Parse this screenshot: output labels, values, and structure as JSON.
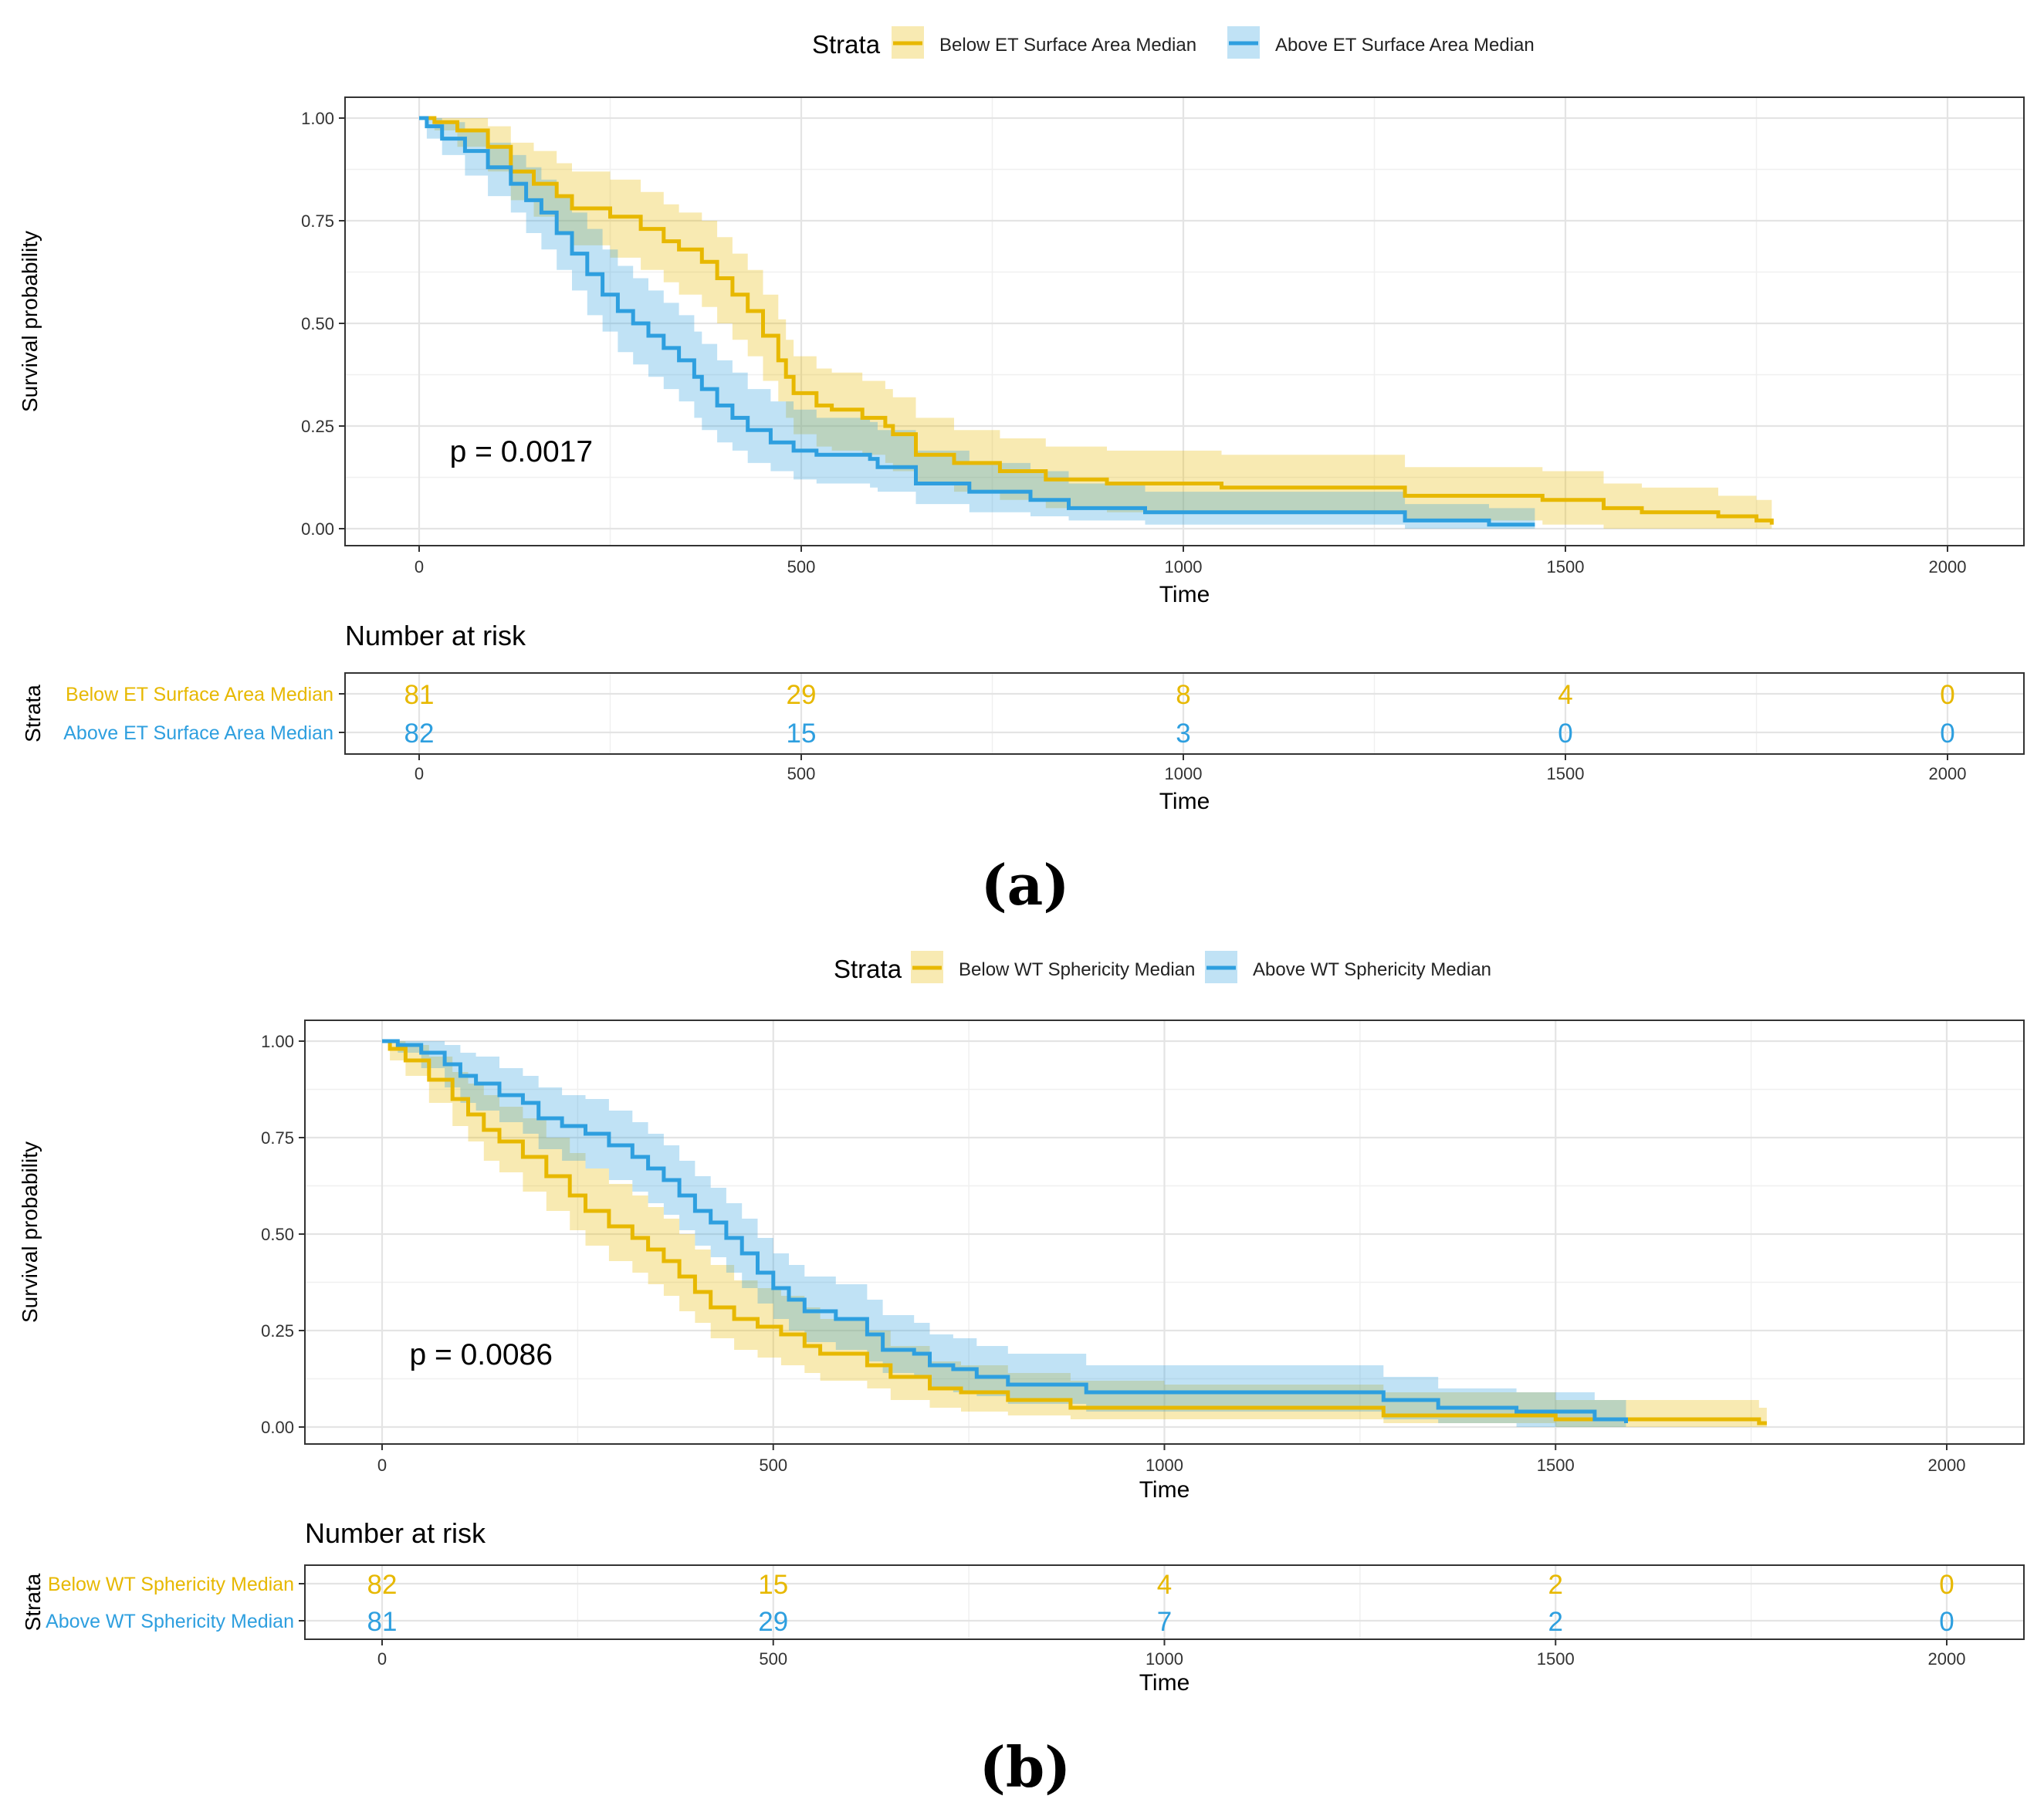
{
  "chart_data": [
    {
      "id": "a",
      "type": "line",
      "subtype": "kaplan-meier",
      "panel_label": "(a)",
      "legend_title": "Strata",
      "legend_position": "top",
      "xlabel": "Time",
      "ylabel": "Survival probability",
      "xlim": [
        -100,
        2100
      ],
      "ylim": [
        -0.045,
        1.045
      ],
      "x_ticks": [
        0,
        500,
        1000,
        1500,
        2000
      ],
      "y_ticks": [
        0.0,
        0.25,
        0.5,
        0.75,
        1.0
      ],
      "y_tick_labels": [
        "0.00",
        "0.25",
        "0.50",
        "0.75",
        "1.00"
      ],
      "grid": true,
      "p_value": "p = 0.0017",
      "p_value_pos": [
        40,
        0.19
      ],
      "series": [
        {
          "name": "Below ET Surface Area Median",
          "color": "#E7B800",
          "x": [
            0,
            20,
            50,
            90,
            120,
            150,
            180,
            200,
            250,
            290,
            320,
            340,
            370,
            390,
            410,
            430,
            450,
            470,
            480,
            490,
            520,
            540,
            580,
            610,
            620,
            650,
            700,
            760,
            820,
            900,
            1050,
            1150,
            1290,
            1470,
            1550,
            1600,
            1700,
            1750,
            1770
          ],
          "y": [
            1.0,
            0.99,
            0.97,
            0.93,
            0.87,
            0.84,
            0.81,
            0.78,
            0.76,
            0.73,
            0.7,
            0.68,
            0.65,
            0.61,
            0.57,
            0.53,
            0.47,
            0.41,
            0.37,
            0.33,
            0.3,
            0.29,
            0.27,
            0.25,
            0.23,
            0.18,
            0.16,
            0.14,
            0.12,
            0.11,
            0.1,
            0.1,
            0.08,
            0.07,
            0.05,
            0.04,
            0.03,
            0.02,
            0.01
          ],
          "ci_lower": [
            1.0,
            0.97,
            0.93,
            0.87,
            0.8,
            0.76,
            0.72,
            0.69,
            0.66,
            0.63,
            0.6,
            0.57,
            0.54,
            0.5,
            0.46,
            0.42,
            0.36,
            0.31,
            0.27,
            0.23,
            0.2,
            0.19,
            0.18,
            0.16,
            0.14,
            0.11,
            0.09,
            0.07,
            0.05,
            0.04,
            0.04,
            0.04,
            0.02,
            0.01,
            0.0,
            0.0,
            0.0,
            0.0,
            0.0
          ],
          "ci_upper": [
            1.0,
            1.0,
            1.0,
            0.98,
            0.94,
            0.92,
            0.89,
            0.87,
            0.85,
            0.82,
            0.79,
            0.77,
            0.75,
            0.71,
            0.67,
            0.63,
            0.57,
            0.51,
            0.46,
            0.42,
            0.39,
            0.38,
            0.36,
            0.34,
            0.32,
            0.27,
            0.24,
            0.22,
            0.2,
            0.19,
            0.18,
            0.18,
            0.15,
            0.14,
            0.11,
            0.1,
            0.08,
            0.07,
            0.04
          ]
        },
        {
          "name": "Above ET Surface Area Median",
          "color": "#2E9FDF",
          "x": [
            0,
            10,
            30,
            60,
            90,
            120,
            140,
            160,
            180,
            200,
            220,
            240,
            260,
            280,
            300,
            320,
            340,
            360,
            370,
            390,
            410,
            430,
            460,
            490,
            520,
            590,
            600,
            650,
            720,
            800,
            850,
            950,
            1100,
            1290,
            1400,
            1460
          ],
          "y": [
            1.0,
            0.98,
            0.95,
            0.92,
            0.88,
            0.84,
            0.8,
            0.77,
            0.72,
            0.67,
            0.62,
            0.57,
            0.53,
            0.5,
            0.47,
            0.44,
            0.41,
            0.37,
            0.34,
            0.3,
            0.27,
            0.24,
            0.21,
            0.19,
            0.18,
            0.17,
            0.15,
            0.11,
            0.09,
            0.07,
            0.05,
            0.04,
            0.04,
            0.02,
            0.01,
            0.01
          ],
          "ci_lower": [
            1.0,
            0.95,
            0.91,
            0.86,
            0.81,
            0.77,
            0.72,
            0.68,
            0.63,
            0.58,
            0.52,
            0.48,
            0.43,
            0.4,
            0.37,
            0.34,
            0.31,
            0.27,
            0.24,
            0.21,
            0.19,
            0.16,
            0.14,
            0.12,
            0.11,
            0.1,
            0.09,
            0.06,
            0.04,
            0.03,
            0.02,
            0.01,
            0.01,
            0.0,
            0.0,
            0.0
          ],
          "ci_upper": [
            1.0,
            1.0,
            0.99,
            0.97,
            0.94,
            0.91,
            0.88,
            0.85,
            0.81,
            0.77,
            0.73,
            0.68,
            0.64,
            0.61,
            0.58,
            0.55,
            0.52,
            0.48,
            0.45,
            0.41,
            0.38,
            0.34,
            0.31,
            0.29,
            0.27,
            0.26,
            0.24,
            0.19,
            0.16,
            0.14,
            0.11,
            0.09,
            0.09,
            0.06,
            0.05,
            0.05
          ]
        }
      ],
      "risk_table": {
        "title": "Number at risk",
        "ylabel": "Strata",
        "xlabel": "Time",
        "times": [
          0,
          500,
          1000,
          1500,
          2000
        ],
        "rows": [
          {
            "name": "Below ET Surface Area Median",
            "color": "#E7B800",
            "values": [
              "81",
              "29",
              "8",
              "4",
              "0"
            ]
          },
          {
            "name": "Above ET Surface Area Median",
            "color": "#2E9FDF",
            "values": [
              "82",
              "15",
              "3",
              "0",
              "0"
            ]
          }
        ]
      }
    },
    {
      "id": "b",
      "type": "line",
      "subtype": "kaplan-meier",
      "panel_label": "(b)",
      "legend_title": "Strata",
      "legend_position": "top",
      "xlabel": "Time",
      "ylabel": "Survival probability",
      "xlim": [
        -100,
        2100
      ],
      "ylim": [
        -0.045,
        1.045
      ],
      "x_ticks": [
        0,
        500,
        1000,
        1500,
        2000
      ],
      "y_ticks": [
        0.0,
        0.25,
        0.5,
        0.75,
        1.0
      ],
      "y_tick_labels": [
        "0.00",
        "0.25",
        "0.50",
        "0.75",
        "1.00"
      ],
      "grid": true,
      "p_value": "p = 0.0086",
      "p_value_pos": [
        35,
        0.19
      ],
      "series": [
        {
          "name": "Below WT Sphericity Median",
          "color": "#E7B800",
          "x": [
            0,
            10,
            30,
            60,
            90,
            110,
            130,
            150,
            180,
            210,
            240,
            260,
            290,
            320,
            340,
            360,
            380,
            400,
            420,
            450,
            480,
            510,
            540,
            560,
            620,
            650,
            700,
            740,
            800,
            880,
            1000,
            1100,
            1280,
            1500,
            1600,
            1700,
            1760,
            1770
          ],
          "y": [
            1.0,
            0.98,
            0.95,
            0.9,
            0.85,
            0.81,
            0.77,
            0.74,
            0.7,
            0.65,
            0.6,
            0.56,
            0.52,
            0.49,
            0.46,
            0.43,
            0.39,
            0.35,
            0.31,
            0.28,
            0.26,
            0.24,
            0.21,
            0.19,
            0.16,
            0.13,
            0.1,
            0.09,
            0.07,
            0.05,
            0.05,
            0.05,
            0.03,
            0.02,
            0.02,
            0.02,
            0.01,
            0.01
          ],
          "ci_lower": [
            1.0,
            0.95,
            0.91,
            0.84,
            0.78,
            0.74,
            0.69,
            0.66,
            0.61,
            0.56,
            0.51,
            0.47,
            0.43,
            0.4,
            0.37,
            0.34,
            0.3,
            0.27,
            0.23,
            0.2,
            0.18,
            0.16,
            0.14,
            0.12,
            0.1,
            0.07,
            0.05,
            0.04,
            0.03,
            0.02,
            0.02,
            0.02,
            0.01,
            0.0,
            0.0,
            0.0,
            0.0,
            0.0
          ],
          "ci_upper": [
            1.0,
            1.0,
            0.99,
            0.96,
            0.92,
            0.89,
            0.86,
            0.83,
            0.8,
            0.75,
            0.71,
            0.67,
            0.63,
            0.6,
            0.57,
            0.54,
            0.5,
            0.46,
            0.42,
            0.38,
            0.36,
            0.34,
            0.31,
            0.28,
            0.25,
            0.21,
            0.17,
            0.16,
            0.14,
            0.12,
            0.11,
            0.11,
            0.09,
            0.07,
            0.07,
            0.07,
            0.05,
            0.05
          ]
        },
        {
          "name": "Above WT Sphericity Median",
          "color": "#2E9FDF",
          "x": [
            0,
            20,
            50,
            80,
            100,
            120,
            150,
            180,
            200,
            230,
            260,
            290,
            320,
            340,
            360,
            380,
            400,
            420,
            440,
            460,
            480,
            500,
            520,
            540,
            580,
            620,
            640,
            680,
            700,
            730,
            760,
            800,
            900,
            1000,
            1150,
            1280,
            1350,
            1450,
            1550,
            1590
          ],
          "y": [
            1.0,
            0.99,
            0.97,
            0.94,
            0.91,
            0.89,
            0.86,
            0.84,
            0.8,
            0.78,
            0.76,
            0.73,
            0.7,
            0.67,
            0.64,
            0.6,
            0.56,
            0.53,
            0.49,
            0.45,
            0.4,
            0.36,
            0.33,
            0.3,
            0.28,
            0.24,
            0.2,
            0.19,
            0.16,
            0.15,
            0.13,
            0.11,
            0.09,
            0.09,
            0.09,
            0.07,
            0.05,
            0.04,
            0.02,
            0.01
          ],
          "ci_lower": [
            1.0,
            0.97,
            0.93,
            0.88,
            0.84,
            0.82,
            0.79,
            0.76,
            0.72,
            0.69,
            0.67,
            0.64,
            0.61,
            0.58,
            0.55,
            0.51,
            0.47,
            0.44,
            0.4,
            0.36,
            0.32,
            0.28,
            0.25,
            0.22,
            0.2,
            0.17,
            0.14,
            0.13,
            0.1,
            0.09,
            0.08,
            0.06,
            0.04,
            0.04,
            0.04,
            0.02,
            0.01,
            0.0,
            0.0,
            0.0
          ],
          "ci_upper": [
            1.0,
            1.0,
            1.0,
            0.99,
            0.97,
            0.96,
            0.93,
            0.91,
            0.88,
            0.86,
            0.85,
            0.82,
            0.79,
            0.76,
            0.73,
            0.69,
            0.65,
            0.62,
            0.58,
            0.54,
            0.49,
            0.45,
            0.42,
            0.39,
            0.37,
            0.33,
            0.29,
            0.27,
            0.24,
            0.23,
            0.21,
            0.19,
            0.16,
            0.16,
            0.16,
            0.13,
            0.1,
            0.09,
            0.07,
            0.05
          ]
        }
      ],
      "risk_table": {
        "title": "Number at risk",
        "ylabel": "Strata",
        "xlabel": "Time",
        "times": [
          0,
          500,
          1000,
          1500,
          2000
        ],
        "rows": [
          {
            "name": "Below WT Sphericity Median",
            "color": "#E7B800",
            "values": [
              "82",
              "15",
              "4",
              "2",
              "0"
            ]
          },
          {
            "name": "Above WT Sphericity Median",
            "color": "#2E9FDF",
            "values": [
              "81",
              "29",
              "7",
              "2",
              "0"
            ]
          }
        ]
      }
    }
  ]
}
